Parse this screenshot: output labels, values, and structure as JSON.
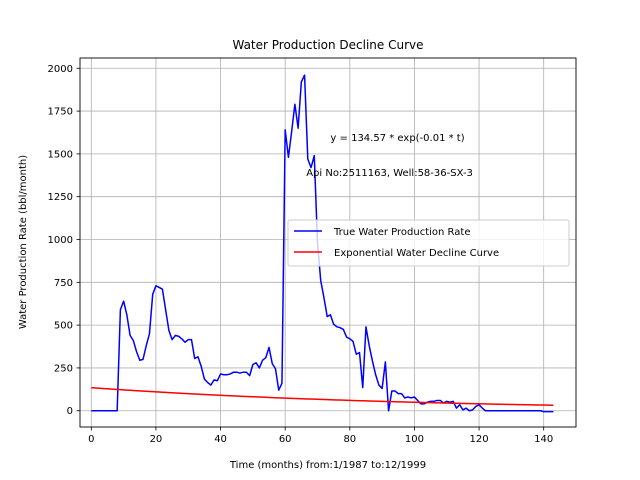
{
  "chart_data": {
    "type": "line",
    "title": "Water Production Decline Curve",
    "xlabel": "Time (months) from:1/1987 to:12/1999",
    "ylabel": "Water Production Rate (bbl/month)",
    "xlim": [
      -3.5,
      150
    ],
    "ylim": [
      -95,
      2060
    ],
    "xticks": [
      0,
      20,
      40,
      60,
      80,
      100,
      120,
      140
    ],
    "yticks": [
      0,
      250,
      500,
      750,
      1000,
      1250,
      1500,
      1750,
      2000
    ],
    "grid": true,
    "legend_position": "center-right",
    "annotations": [
      {
        "text": "y = 134.57 * exp(-0.01 * t)",
        "x": 74,
        "y": 1600
      },
      {
        "text": "Api No:2511163, Well:58-36-SX-3",
        "x": 66.5,
        "y": 1395
      }
    ],
    "series": [
      {
        "name": "True Water Production Rate",
        "color": "#0000ff",
        "points": [
          [
            0,
            0
          ],
          [
            1,
            0
          ],
          [
            2,
            0
          ],
          [
            3,
            0
          ],
          [
            4,
            0
          ],
          [
            5,
            0
          ],
          [
            6,
            0
          ],
          [
            7,
            0
          ],
          [
            8,
            0
          ],
          [
            9,
            590
          ],
          [
            10,
            640
          ],
          [
            11,
            560
          ],
          [
            12,
            440
          ],
          [
            13,
            410
          ],
          [
            14,
            345
          ],
          [
            15,
            295
          ],
          [
            16,
            300
          ],
          [
            17,
            380
          ],
          [
            18,
            450
          ],
          [
            19,
            680
          ],
          [
            20,
            730
          ],
          [
            21,
            720
          ],
          [
            22,
            710
          ],
          [
            23,
            590
          ],
          [
            24,
            470
          ],
          [
            25,
            415
          ],
          [
            26,
            440
          ],
          [
            27,
            435
          ],
          [
            28,
            420
          ],
          [
            29,
            400
          ],
          [
            30,
            415
          ],
          [
            31,
            415
          ],
          [
            32,
            305
          ],
          [
            33,
            315
          ],
          [
            34,
            260
          ],
          [
            35,
            185
          ],
          [
            36,
            165
          ],
          [
            37,
            150
          ],
          [
            38,
            180
          ],
          [
            39,
            175
          ],
          [
            40,
            215
          ],
          [
            41,
            210
          ],
          [
            42,
            210
          ],
          [
            43,
            215
          ],
          [
            44,
            225
          ],
          [
            45,
            225
          ],
          [
            46,
            220
          ],
          [
            47,
            225
          ],
          [
            48,
            225
          ],
          [
            49,
            205
          ],
          [
            50,
            270
          ],
          [
            51,
            280
          ],
          [
            52,
            250
          ],
          [
            53,
            295
          ],
          [
            54,
            310
          ],
          [
            55,
            370
          ],
          [
            56,
            275
          ],
          [
            57,
            245
          ],
          [
            58,
            120
          ],
          [
            59,
            160
          ],
          [
            60,
            1640
          ],
          [
            61,
            1480
          ],
          [
            62,
            1630
          ],
          [
            63,
            1790
          ],
          [
            64,
            1650
          ],
          [
            65,
            1920
          ],
          [
            66,
            1960
          ],
          [
            67,
            1470
          ],
          [
            68,
            1420
          ],
          [
            69,
            1490
          ],
          [
            70,
            980
          ],
          [
            71,
            760
          ],
          [
            72,
            660
          ],
          [
            73,
            550
          ],
          [
            74,
            560
          ],
          [
            75,
            505
          ],
          [
            76,
            490
          ],
          [
            77,
            485
          ],
          [
            78,
            475
          ],
          [
            79,
            430
          ],
          [
            80,
            420
          ],
          [
            81,
            405
          ],
          [
            82,
            330
          ],
          [
            83,
            340
          ],
          [
            84,
            135
          ],
          [
            85,
            490
          ],
          [
            86,
            380
          ],
          [
            87,
            290
          ],
          [
            88,
            210
          ],
          [
            89,
            150
          ],
          [
            90,
            130
          ],
          [
            91,
            285
          ],
          [
            92,
            0
          ],
          [
            93,
            115
          ],
          [
            94,
            115
          ],
          [
            95,
            100
          ],
          [
            96,
            100
          ],
          [
            97,
            75
          ],
          [
            98,
            80
          ],
          [
            99,
            75
          ],
          [
            100,
            80
          ],
          [
            101,
            60
          ],
          [
            102,
            40
          ],
          [
            103,
            40
          ],
          [
            104,
            50
          ],
          [
            105,
            55
          ],
          [
            106,
            55
          ],
          [
            107,
            60
          ],
          [
            108,
            60
          ],
          [
            109,
            45
          ],
          [
            110,
            55
          ],
          [
            111,
            50
          ],
          [
            112,
            55
          ],
          [
            113,
            15
          ],
          [
            114,
            35
          ],
          [
            115,
            5
          ],
          [
            116,
            15
          ],
          [
            117,
            0
          ],
          [
            118,
            5
          ],
          [
            119,
            25
          ],
          [
            120,
            35
          ],
          [
            121,
            15
          ],
          [
            122,
            0
          ],
          [
            123,
            0
          ],
          [
            124,
            0
          ],
          [
            125,
            0
          ],
          [
            126,
            0
          ],
          [
            127,
            0
          ],
          [
            128,
            0
          ],
          [
            129,
            0
          ],
          [
            130,
            0
          ],
          [
            131,
            0
          ],
          [
            132,
            0
          ],
          [
            133,
            0
          ],
          [
            134,
            0
          ],
          [
            135,
            0
          ],
          [
            136,
            0
          ],
          [
            137,
            0
          ],
          [
            138,
            0
          ],
          [
            139,
            0
          ],
          [
            140,
            -5
          ],
          [
            141,
            -5
          ],
          [
            142,
            -5
          ],
          [
            143,
            -5
          ]
        ]
      },
      {
        "name": "Exponential Water Decline Curve",
        "color": "#ff0000",
        "function": {
          "kind": "exponential",
          "a": 134.57,
          "b": -0.01,
          "t_min": 0,
          "t_max": 143
        }
      }
    ]
  }
}
